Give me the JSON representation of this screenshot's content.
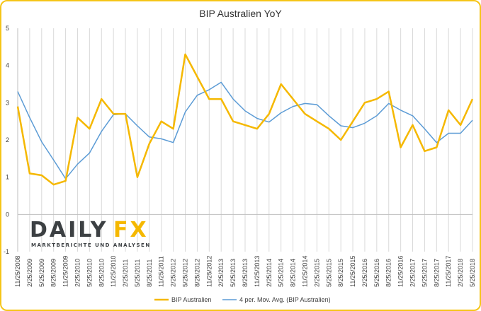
{
  "chart_data": {
    "type": "line",
    "title": "BIP Australien YoY",
    "xlabel": "",
    "ylabel": "",
    "ylim": [
      -1,
      5
    ],
    "yticks": [
      -1,
      0,
      1,
      2,
      3,
      4,
      5
    ],
    "grid": "vertical",
    "legend": "bottom",
    "x": [
      "11/25/2008",
      "2/25/2009",
      "5/25/2009",
      "8/25/2009",
      "11/25/2009",
      "2/25/2010",
      "5/25/2010",
      "8/25/2010",
      "11/25/2010",
      "2/25/2011",
      "5/25/2011",
      "8/25/2011",
      "11/25/2011",
      "2/25/2012",
      "5/25/2012",
      "8/25/2012",
      "11/25/2012",
      "2/25/2013",
      "5/25/2013",
      "8/25/2013",
      "11/25/2013",
      "2/25/2014",
      "5/25/2014",
      "8/25/2014",
      "11/25/2014",
      "2/25/2015",
      "5/25/2015",
      "8/25/2015",
      "11/25/2015",
      "2/25/2016",
      "5/25/2016",
      "8/25/2016",
      "11/25/2016",
      "2/25/2017",
      "5/25/2017",
      "8/25/2017",
      "11/25/2017",
      "2/25/2018",
      "5/25/2018"
    ],
    "series": [
      {
        "name": "BIP Australien",
        "color": "#f5b800",
        "values": [
          2.9,
          1.1,
          1.05,
          0.8,
          0.9,
          2.6,
          2.3,
          3.1,
          2.7,
          2.7,
          1.0,
          1.9,
          2.5,
          2.3,
          4.3,
          3.7,
          3.1,
          3.1,
          2.5,
          2.4,
          2.3,
          2.7,
          3.5,
          3.1,
          2.7,
          2.5,
          2.3,
          2.0,
          2.5,
          3.0,
          3.1,
          3.3,
          1.8,
          2.4,
          1.7,
          1.8,
          2.8,
          2.4,
          3.1
        ]
      },
      {
        "name": "4 per. Mov. Avg. (BIP Australien)",
        "color": "#5b9bd5",
        "values": [
          3.3,
          2.6,
          1.95,
          1.46,
          0.96,
          1.35,
          1.65,
          2.23,
          2.68,
          2.7,
          2.38,
          2.08,
          2.03,
          1.93,
          2.75,
          3.2,
          3.35,
          3.55,
          3.1,
          2.78,
          2.58,
          2.48,
          2.73,
          2.9,
          2.98,
          2.95,
          2.65,
          2.38,
          2.33,
          2.45,
          2.65,
          2.98,
          2.8,
          2.65,
          2.3,
          1.93,
          2.18,
          2.18,
          2.53
        ]
      }
    ]
  },
  "logo": {
    "text": "DAILYFX",
    "part1": "DAILY",
    "part2": "FX",
    "tagline": "MARKTBERICHTE UND ANALYSEN"
  },
  "colors": {
    "frame": "#f5c518",
    "grid": "#d9d9d9",
    "axis": "#bfbfbf",
    "logo_dark": "#3c4043",
    "logo_gold": "#f5b800"
  }
}
